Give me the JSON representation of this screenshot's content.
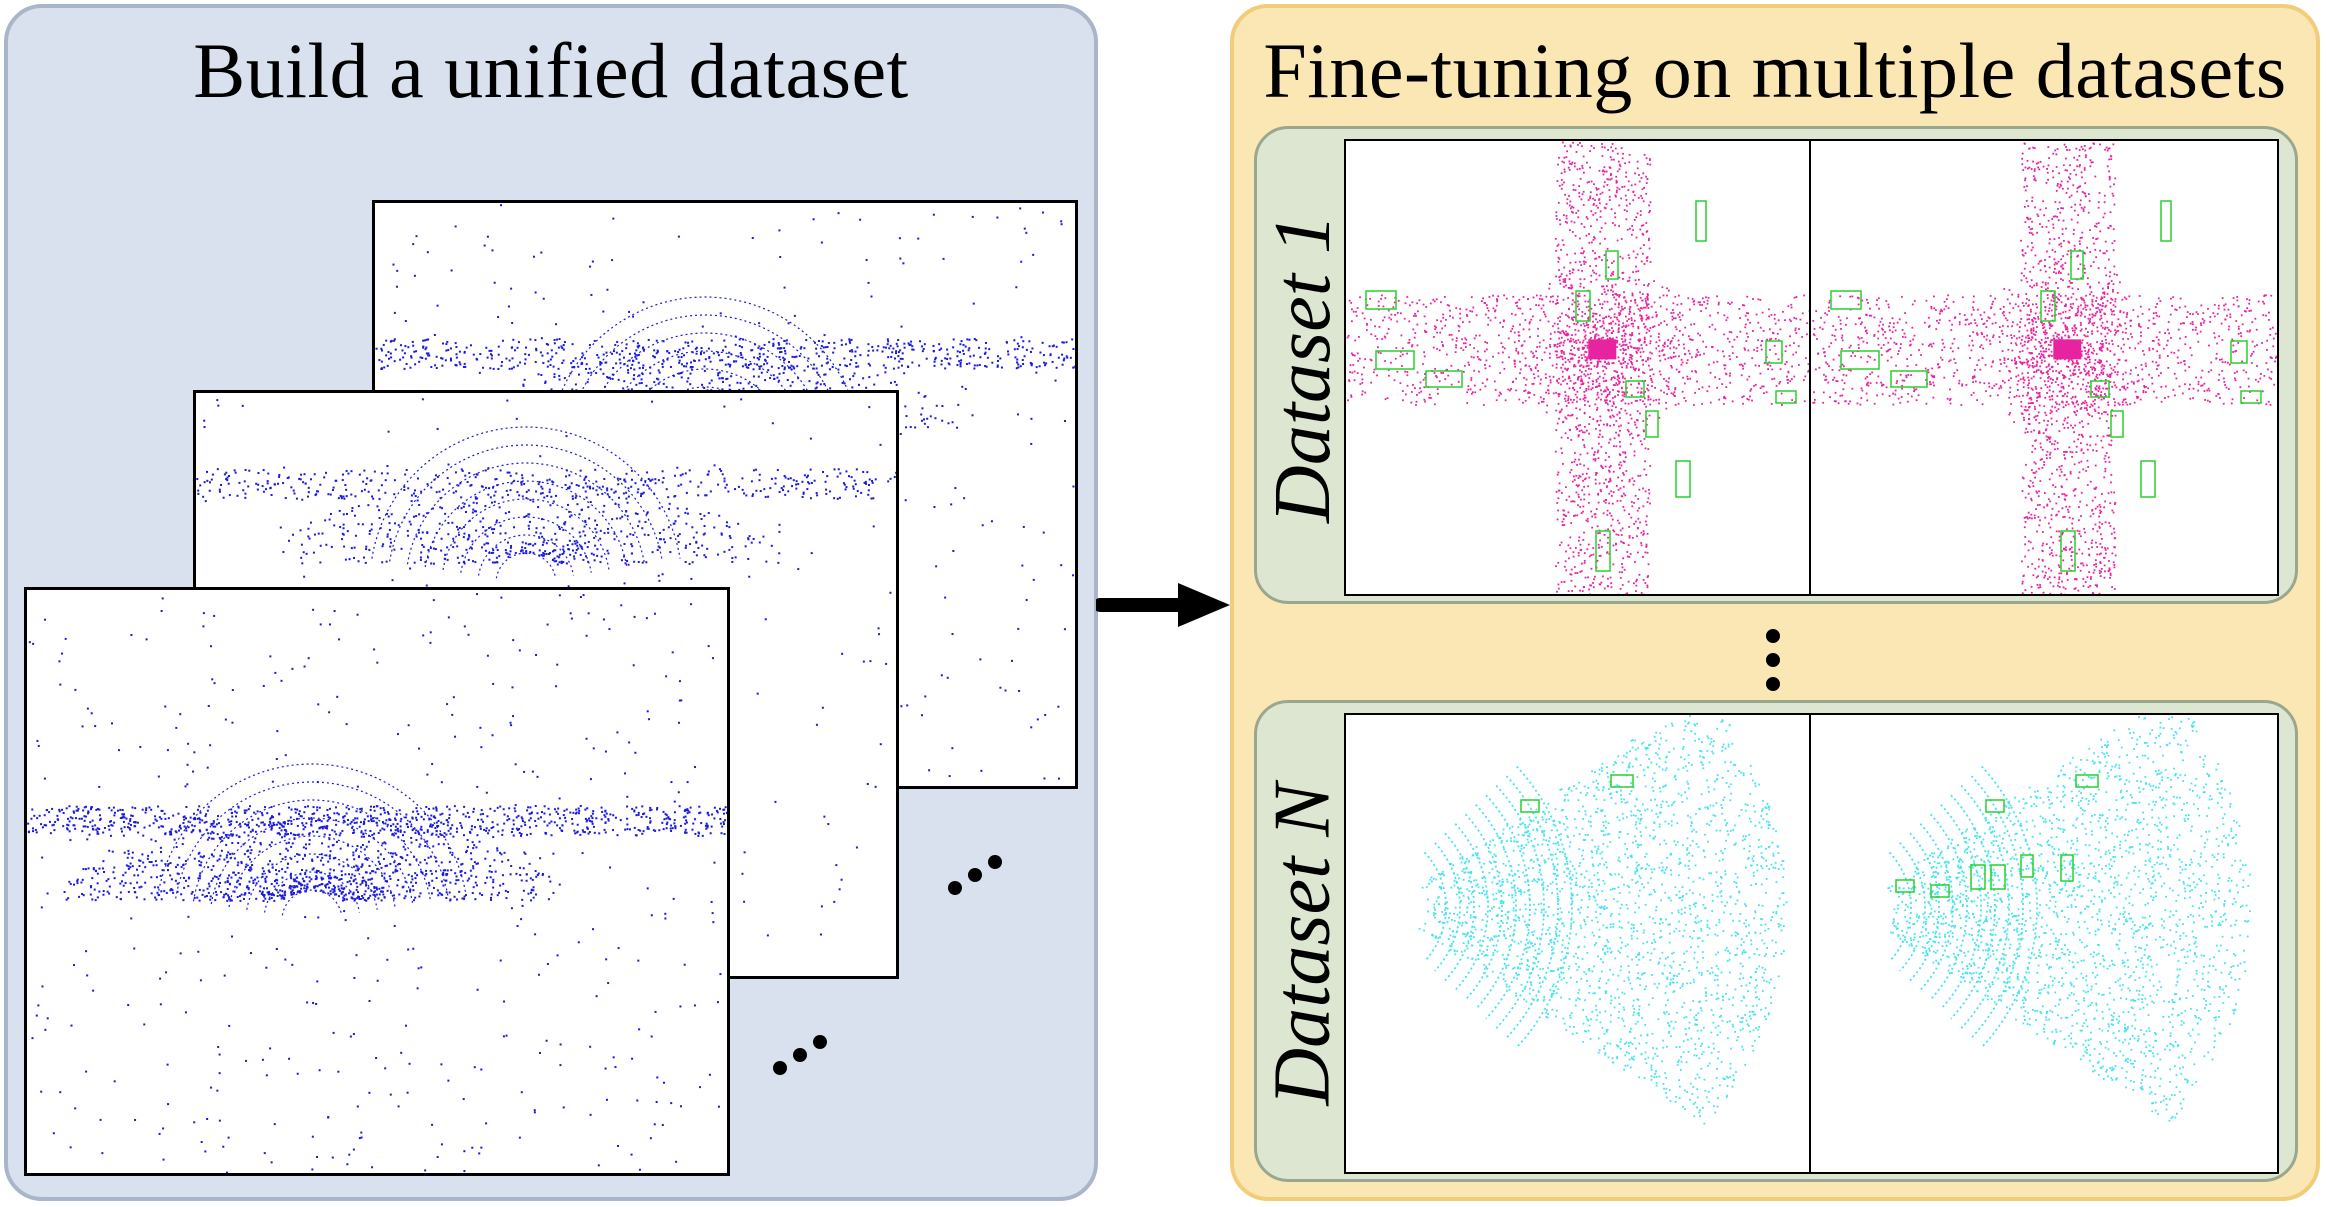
{
  "left": {
    "title": "Build a unified dataset"
  },
  "right": {
    "title": "Fine-tuning on multiple datasets",
    "datasets": [
      {
        "label": "Dataset 1",
        "point_color": "#e8239f",
        "box_color": "#29d12f"
      },
      {
        "label": "Dataset N",
        "point_color": "#43e3ef",
        "box_color": "#29d12f"
      }
    ]
  },
  "colors": {
    "left_fill": "#d9e1ee",
    "left_border": "#a9b6c9",
    "right_fill": "#fbe7b4",
    "right_border": "#f1cd79",
    "sub_fill": "#dde6d1",
    "unified_points": "#1a1adf"
  },
  "icons": [
    "right-arrow-icon",
    "ellipsis-icon",
    "vertical-ellipsis-icon"
  ]
}
